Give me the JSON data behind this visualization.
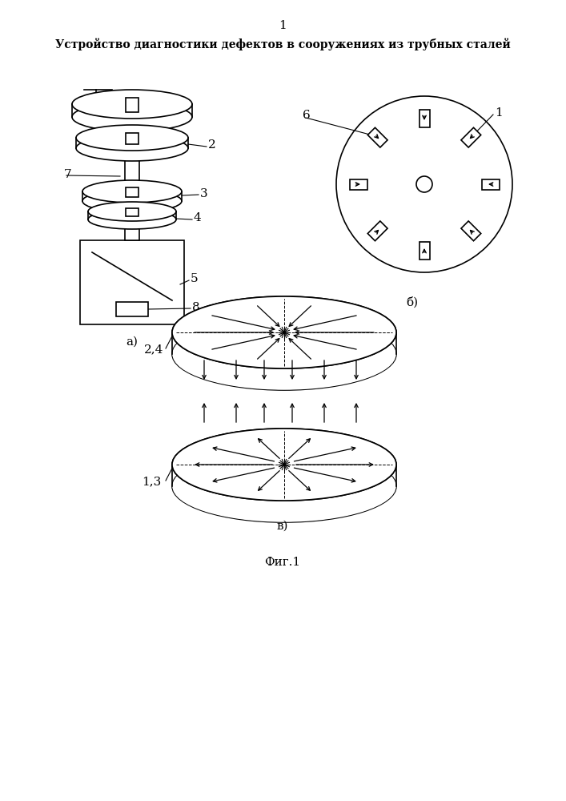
{
  "title_page_num": "1",
  "title_text": "Устройство диагностики дефектов в сооружениях из трубных сталей",
  "label_a": "а)",
  "label_b": "б)",
  "label_v": "в)",
  "fig_label": "Фиг.1",
  "bg_color": "#ffffff",
  "line_color": "#000000"
}
